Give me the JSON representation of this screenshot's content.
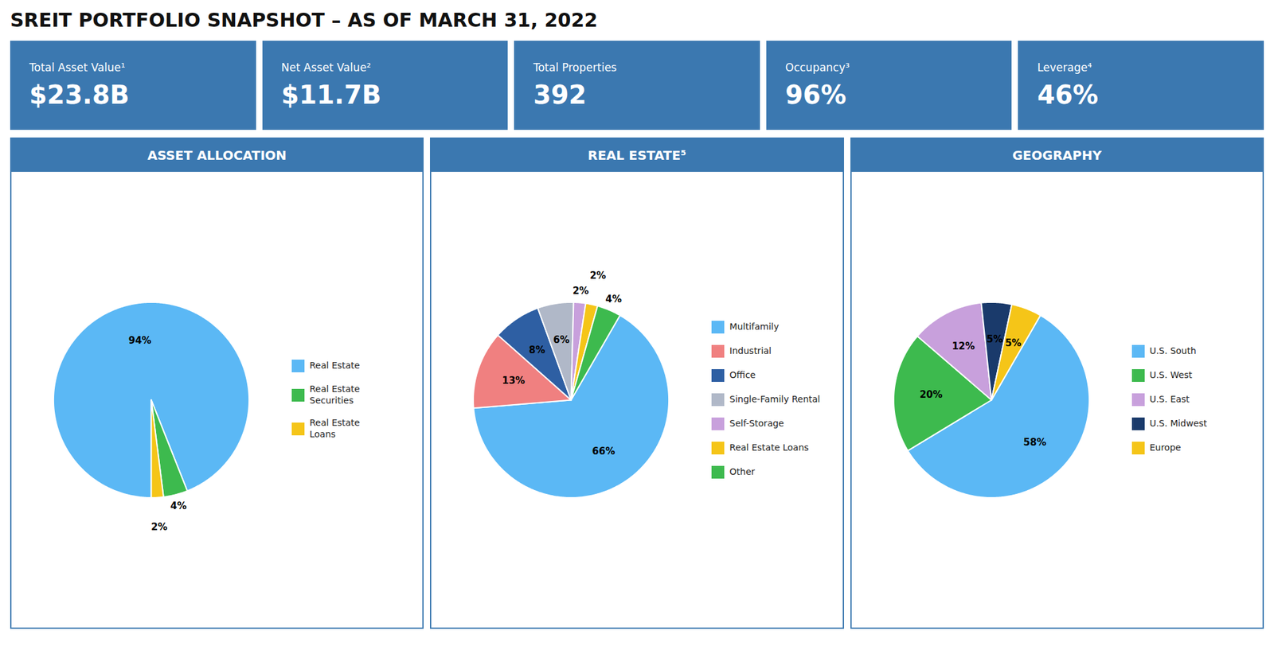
{
  "title": "SREIT PORTFOLIO SNAPSHOT – AS OF MARCH 31, 2022",
  "annotations": [
    [
      "Total Asset Value¹",
      "$23.8B"
    ],
    [
      "Net Asset Value²",
      "$11.7B"
    ],
    [
      "Total Properties",
      "392"
    ],
    [
      "Occupancy³",
      "96%"
    ],
    [
      "Leverage⁴",
      "46%"
    ]
  ],
  "chart_data": [
    {
      "type": "pie",
      "title": "ASSET ALLOCATION",
      "categories": [
        "Real Estate",
        "Real Estate\nSecurities",
        "Real Estate\nLoans"
      ],
      "values": [
        94,
        4,
        2
      ],
      "value_labels": [
        "94%",
        "4%",
        "2%"
      ],
      "colors": [
        "#5bb8f5",
        "#3dba4e",
        "#f5c518"
      ],
      "data_labels": true,
      "legend": "right"
    },
    {
      "type": "pie",
      "title": "REAL ESTATE⁵",
      "categories": [
        "Multifamily",
        "Industrial",
        "Office",
        "Single-Family Rental",
        "Self-Storage",
        "Real Estate Loans",
        "Other"
      ],
      "values": [
        66,
        13,
        8,
        6,
        2,
        2,
        4
      ],
      "value_labels": [
        "66%",
        "13%",
        "8%",
        "6%",
        "2%",
        "2%",
        "4%"
      ],
      "colors": [
        "#5bb8f5",
        "#f08080",
        "#2e5fa3",
        "#b0b8c8",
        "#c8a0dc",
        "#f5c518",
        "#3dba4e"
      ],
      "data_labels": true,
      "legend": "right"
    },
    {
      "type": "pie",
      "title": "GEOGRAPHY",
      "categories": [
        "U.S. South",
        "U.S. West",
        "U.S. East",
        "U.S. Midwest",
        "Europe"
      ],
      "values": [
        58,
        20,
        12,
        5,
        5
      ],
      "value_labels": [
        "58%",
        "20%",
        "12%",
        "5%",
        "5%"
      ],
      "colors": [
        "#5bb8f5",
        "#3dba4e",
        "#c8a0dc",
        "#1a3a6b",
        "#f5c518"
      ],
      "data_labels": true,
      "legend": "right"
    }
  ]
}
